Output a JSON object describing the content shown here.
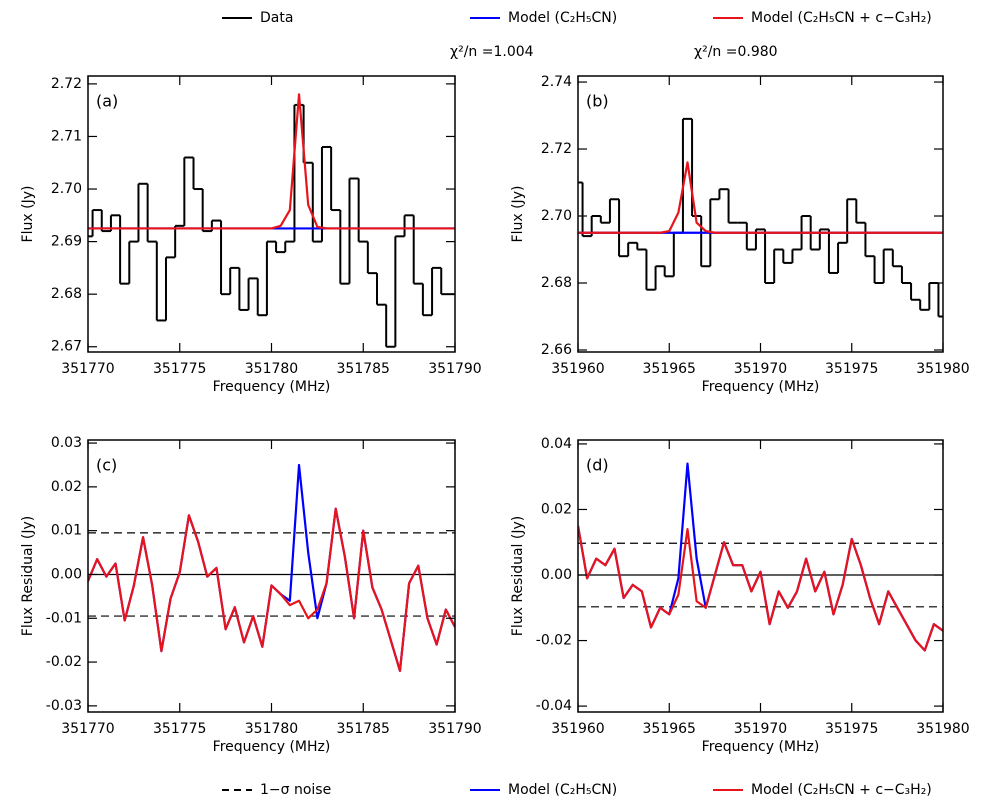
{
  "legend_top": [
    {
      "label": "Data",
      "color": "#000000",
      "style": "solid"
    },
    {
      "label": "Model (C₂H₅CN)",
      "color": "#0000ff",
      "style": "solid"
    },
    {
      "label": "Model (C₂H₅CN + c−C₃H₂)",
      "color": "#e8141c",
      "style": "solid"
    }
  ],
  "annotations": [
    "χ²/n =1.004",
    "χ²/n =0.980"
  ],
  "legend_bottom": [
    {
      "label": "1−σ noise",
      "color": "#000000",
      "style": "dashed"
    },
    {
      "label": "Model (C₂H₅CN)",
      "color": "#0000ff",
      "style": "solid"
    },
    {
      "label": "Model (C₂H₅CN + c−C₃H₂)",
      "color": "#e8141c",
      "style": "solid"
    }
  ],
  "chart_data": [
    {
      "type": "line",
      "label": "(a)",
      "xlabel": "Frequency (MHz)",
      "ylabel": "Flux (Jy)",
      "xlim": [
        351770,
        351790
      ],
      "xticks": [
        351770,
        351775,
        351780,
        351785,
        351790
      ],
      "ylim": [
        2.669,
        2.7215
      ],
      "yticks": [
        2.67,
        2.68,
        2.69,
        {
          "value": 2.7,
          "label": "2.70"
        },
        2.71,
        2.72
      ],
      "x": [
        351770,
        351770.5,
        351771,
        351771.5,
        351772,
        351772.5,
        351773,
        351773.5,
        351774,
        351774.5,
        351775,
        351775.5,
        351776,
        351776.5,
        351777,
        351777.5,
        351778,
        351778.5,
        351779,
        351779.5,
        351780,
        351780.5,
        351781,
        351781.5,
        351782,
        351782.5,
        351783,
        351783.5,
        351784,
        351784.5,
        351785,
        351785.5,
        351786,
        351786.5,
        351787,
        351787.5,
        351788,
        351788.5,
        351789,
        351789.5,
        351790
      ],
      "series": [
        {
          "color": "#000000",
          "style": "step",
          "values": [
            2.691,
            2.696,
            2.692,
            2.695,
            2.682,
            2.69,
            2.701,
            2.69,
            2.675,
            2.687,
            2.693,
            2.706,
            2.7,
            2.692,
            2.694,
            2.68,
            2.685,
            2.677,
            2.683,
            2.676,
            2.69,
            2.688,
            2.69,
            2.716,
            2.705,
            2.69,
            2.708,
            2.696,
            2.682,
            2.702,
            2.69,
            2.684,
            2.678,
            2.67,
            2.691,
            2.695,
            2.682,
            2.676,
            2.685,
            2.68,
            2.68
          ]
        },
        {
          "color": "#0000ff",
          "style": "line",
          "values": [
            2.6925,
            2.6925,
            2.6925,
            2.6925,
            2.6925,
            2.6925,
            2.6925,
            2.6925,
            2.6925,
            2.6925,
            2.6925,
            2.6925,
            2.6925,
            2.6925,
            2.6925,
            2.6925,
            2.6925,
            2.6925,
            2.6925,
            2.6925,
            2.6925,
            2.6925,
            2.6925,
            2.6925,
            2.6925,
            2.6925,
            2.6925,
            2.6925,
            2.6925,
            2.6925,
            2.6925,
            2.6925,
            2.6925,
            2.6925,
            2.6925,
            2.6925,
            2.6925,
            2.6925,
            2.6925,
            2.6925,
            2.6925
          ]
        },
        {
          "color": "#e8141c",
          "style": "line",
          "values": [
            2.6925,
            2.6925,
            2.6925,
            2.6925,
            2.6925,
            2.6925,
            2.6925,
            2.6925,
            2.6925,
            2.6925,
            2.6925,
            2.6925,
            2.6925,
            2.6925,
            2.6925,
            2.6925,
            2.6925,
            2.6925,
            2.6925,
            2.6925,
            2.6925,
            2.693,
            2.696,
            2.718,
            2.697,
            2.6928,
            2.6925,
            2.6925,
            2.6925,
            2.6925,
            2.6925,
            2.6925,
            2.6925,
            2.6925,
            2.6925,
            2.6925,
            2.6925,
            2.6925,
            2.6925,
            2.6925,
            2.6925
          ]
        }
      ]
    },
    {
      "type": "line",
      "label": "(b)",
      "xlabel": "Frequency (MHz)",
      "ylabel": "Flux (Jy)",
      "xlim": [
        351960,
        351980
      ],
      "xticks": [
        351960,
        351965,
        351970,
        351975,
        351980
      ],
      "ylim": [
        2.6594,
        2.7418
      ],
      "yticks": [
        2.66,
        2.68,
        {
          "value": 2.7,
          "label": "2.70"
        },
        2.72,
        2.74
      ],
      "x": [
        351960,
        351960.5,
        351961,
        351961.5,
        351962,
        351962.5,
        351963,
        351963.5,
        351964,
        351964.5,
        351965,
        351965.5,
        351966,
        351966.5,
        351967,
        351967.5,
        351968,
        351968.5,
        351969,
        351969.5,
        351970,
        351970.5,
        351971,
        351971.5,
        351972,
        351972.5,
        351973,
        351973.5,
        351974,
        351974.5,
        351975,
        351975.5,
        351976,
        351976.5,
        351977,
        351977.5,
        351978,
        351978.5,
        351979,
        351979.5,
        351980
      ],
      "series": [
        {
          "color": "#000000",
          "style": "step",
          "values": [
            2.71,
            2.694,
            2.7,
            2.698,
            2.705,
            2.688,
            2.692,
            2.69,
            2.678,
            2.685,
            2.682,
            2.695,
            2.729,
            2.7,
            2.685,
            2.705,
            2.708,
            2.698,
            2.698,
            2.69,
            2.696,
            2.68,
            2.69,
            2.686,
            2.69,
            2.7,
            2.69,
            2.696,
            2.683,
            2.692,
            2.705,
            2.698,
            2.688,
            2.68,
            2.69,
            2.685,
            2.68,
            2.675,
            2.672,
            2.68,
            2.67
          ]
        },
        {
          "color": "#0000ff",
          "style": "line",
          "values": [
            2.695,
            2.695,
            2.695,
            2.695,
            2.695,
            2.695,
            2.695,
            2.695,
            2.695,
            2.695,
            2.695,
            2.695,
            2.695,
            2.695,
            2.695,
            2.695,
            2.695,
            2.695,
            2.695,
            2.695,
            2.695,
            2.695,
            2.695,
            2.695,
            2.695,
            2.695,
            2.695,
            2.695,
            2.695,
            2.695,
            2.695,
            2.695,
            2.695,
            2.695,
            2.695,
            2.695,
            2.695,
            2.695,
            2.695,
            2.695,
            2.695
          ]
        },
        {
          "color": "#e8141c",
          "style": "line",
          "values": [
            2.695,
            2.695,
            2.695,
            2.695,
            2.695,
            2.695,
            2.695,
            2.695,
            2.695,
            2.695,
            2.6955,
            2.701,
            2.716,
            2.698,
            2.6955,
            2.695,
            2.695,
            2.695,
            2.695,
            2.695,
            2.695,
            2.695,
            2.695,
            2.695,
            2.695,
            2.695,
            2.695,
            2.695,
            2.695,
            2.695,
            2.695,
            2.695,
            2.695,
            2.695,
            2.695,
            2.695,
            2.695,
            2.695,
            2.695,
            2.695,
            2.695
          ]
        }
      ]
    },
    {
      "type": "line",
      "label": "(c)",
      "xlabel": "Frequency (MHz)",
      "ylabel": "Flux Residual (Jy)",
      "xlim": [
        351770,
        351790
      ],
      "xticks": [
        351770,
        351775,
        351780,
        351785,
        351790
      ],
      "ylim": [
        -0.0314,
        0.0307
      ],
      "yticks": [
        -0.03,
        -0.02,
        -0.01,
        {
          "value": 0,
          "label": "0.00"
        },
        0.01,
        0.02,
        0.03
      ],
      "hlines": [
        {
          "value": 0.0095,
          "style": "dashed"
        },
        {
          "value": 0,
          "style": "solid"
        },
        {
          "value": -0.0095,
          "style": "dashed"
        }
      ],
      "x": [
        351770,
        351770.5,
        351771,
        351771.5,
        351772,
        351772.5,
        351773,
        351773.5,
        351774,
        351774.5,
        351775,
        351775.5,
        351776,
        351776.5,
        351777,
        351777.5,
        351778,
        351778.5,
        351779,
        351779.5,
        351780,
        351780.5,
        351781,
        351781.5,
        351782,
        351782.5,
        351783,
        351783.5,
        351784,
        351784.5,
        351785,
        351785.5,
        351786,
        351786.5,
        351787,
        351787.5,
        351788,
        351788.5,
        351789,
        351789.5,
        351790
      ],
      "series": [
        {
          "color": "#0000ff",
          "style": "line",
          "values": [
            -0.0015,
            0.0035,
            -0.0005,
            0.0025,
            -0.0105,
            -0.0025,
            0.0085,
            -0.0025,
            -0.0175,
            -0.0055,
            0.0005,
            0.0135,
            0.0075,
            -0.0005,
            0.0015,
            -0.0125,
            -0.0075,
            -0.0155,
            -0.0095,
            -0.0165,
            -0.0025,
            -0.0045,
            -0.006,
            0.025,
            0.005,
            -0.01,
            -0.002,
            0.015,
            0.004,
            -0.01,
            0.01,
            -0.003,
            -0.008,
            -0.015,
            -0.022,
            -0.002,
            0.002,
            -0.01,
            -0.016,
            -0.008,
            -0.012
          ]
        },
        {
          "color": "#e8141c",
          "style": "line",
          "values": [
            -0.0015,
            0.0035,
            -0.0005,
            0.0025,
            -0.0105,
            -0.0025,
            0.0085,
            -0.0025,
            -0.0175,
            -0.0055,
            0.0005,
            0.0135,
            0.0075,
            -0.0005,
            0.0015,
            -0.0125,
            -0.0075,
            -0.0155,
            -0.0095,
            -0.0165,
            -0.0025,
            -0.0045,
            -0.007,
            -0.006,
            -0.01,
            -0.008,
            -0.002,
            0.015,
            0.004,
            -0.01,
            0.01,
            -0.003,
            -0.008,
            -0.015,
            -0.022,
            -0.002,
            0.002,
            -0.01,
            -0.016,
            -0.008,
            -0.012
          ]
        }
      ]
    },
    {
      "type": "line",
      "label": "(d)",
      "xlabel": "Frequency (MHz)",
      "ylabel": "Flux Residual (Jy)",
      "xlim": [
        351960,
        351980
      ],
      "xticks": [
        351960,
        351965,
        351970,
        351975,
        351980
      ],
      "ylim": [
        -0.0418,
        0.0412
      ],
      "yticks": [
        -0.04,
        -0.02,
        {
          "value": 0,
          "label": "0.00"
        },
        0.02,
        0.04
      ],
      "hlines": [
        {
          "value": 0.0097,
          "style": "dashed"
        },
        {
          "value": 0,
          "style": "solid"
        },
        {
          "value": -0.0097,
          "style": "dashed"
        }
      ],
      "x": [
        351960,
        351960.5,
        351961,
        351961.5,
        351962,
        351962.5,
        351963,
        351963.5,
        351964,
        351964.5,
        351965,
        351965.5,
        351966,
        351966.5,
        351967,
        351967.5,
        351968,
        351968.5,
        351969,
        351969.5,
        351970,
        351970.5,
        351971,
        351971.5,
        351972,
        351972.5,
        351973,
        351973.5,
        351974,
        351974.5,
        351975,
        351975.5,
        351976,
        351976.5,
        351977,
        351977.5,
        351978,
        351978.5,
        351979,
        351979.5,
        351980
      ],
      "series": [
        {
          "color": "#0000ff",
          "style": "line",
          "values": [
            0.015,
            -0.001,
            0.005,
            0.003,
            0.008,
            -0.007,
            -0.003,
            -0.005,
            -0.016,
            -0.01,
            -0.012,
            -0.001,
            0.034,
            0.005,
            -0.01,
            0.0,
            0.01,
            0.003,
            0.003,
            -0.005,
            0.001,
            -0.015,
            -0.005,
            -0.01,
            -0.005,
            0.005,
            -0.005,
            0.001,
            -0.012,
            -0.003,
            0.011,
            0.003,
            -0.007,
            -0.015,
            -0.005,
            -0.01,
            -0.015,
            -0.02,
            -0.023,
            -0.015,
            -0.017
          ]
        },
        {
          "color": "#e8141c",
          "style": "line",
          "values": [
            0.015,
            -0.001,
            0.005,
            0.003,
            0.008,
            -0.007,
            -0.003,
            -0.005,
            -0.016,
            -0.01,
            -0.012,
            -0.006,
            0.014,
            -0.008,
            -0.01,
            0.0,
            0.01,
            0.003,
            0.003,
            -0.005,
            0.001,
            -0.015,
            -0.005,
            -0.01,
            -0.005,
            0.005,
            -0.005,
            0.001,
            -0.012,
            -0.003,
            0.011,
            0.003,
            -0.007,
            -0.015,
            -0.005,
            -0.01,
            -0.015,
            -0.02,
            -0.023,
            -0.015,
            -0.017
          ]
        }
      ]
    }
  ]
}
